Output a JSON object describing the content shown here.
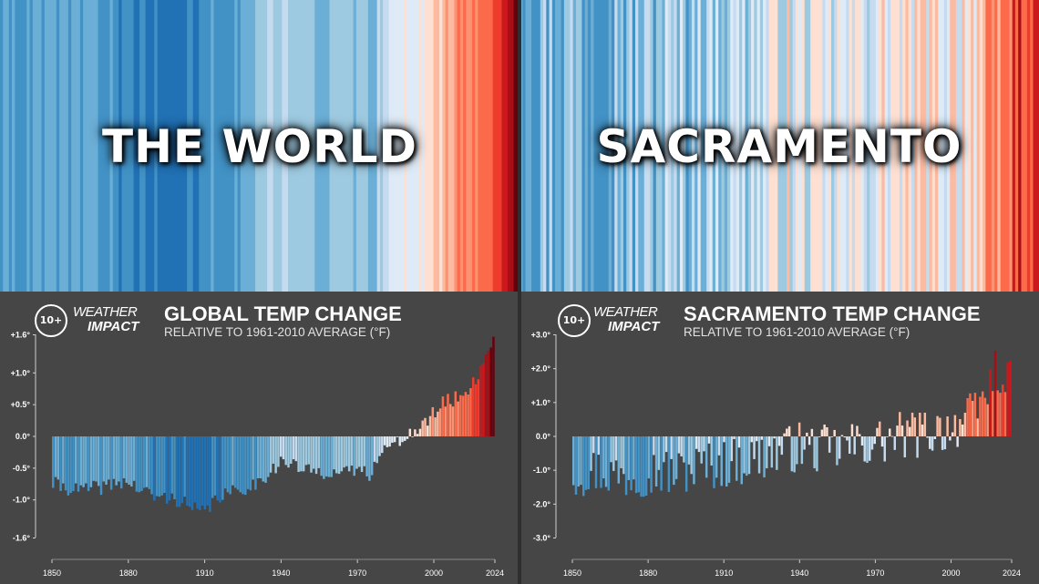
{
  "panels": [
    {
      "stripe_label": "THE WORLD",
      "logo_text": "10+",
      "brand_line1": "WEATHER",
      "brand_line2": "IMPACT",
      "title": "GLOBAL TEMP CHANGE",
      "subtitle": "RELATIVE TO 1961-2010 AVERAGE (°F)"
    },
    {
      "stripe_label": "SACRAMENTO",
      "logo_text": "10+",
      "brand_line1": "WEATHER",
      "brand_line2": "IMPACT",
      "title": "SACRAMENTO TEMP CHANGE",
      "subtitle": "RELATIVE TO 1961-2010 AVERAGE (°F)"
    }
  ],
  "colors": {
    "background": "#464646",
    "scale": [
      "#08306b",
      "#08519c",
      "#2171b5",
      "#4292c6",
      "#6baed6",
      "#9ecae1",
      "#c6dbef",
      "#deebf7",
      "#fee0d2",
      "#fcbba1",
      "#fc9272",
      "#fb6a4a",
      "#ef3b2c",
      "#cb181d",
      "#a50f15",
      "#67000d"
    ]
  },
  "chart_data": [
    {
      "type": "bar",
      "title": "GLOBAL TEMP CHANGE",
      "subtitle": "RELATIVE TO 1961-2010 AVERAGE (°F)",
      "x_start": 1850,
      "x_end": 2024,
      "x_ticks": [
        1850,
        1880,
        1910,
        1940,
        1970,
        2000,
        2024
      ],
      "y_ticks": [
        1.6,
        1.0,
        0.5,
        0.0,
        -0.5,
        -1.0,
        -1.6
      ],
      "y_tick_labels": [
        "+1.6°",
        "+1.0°",
        "+0.5°",
        "0.0°",
        "-0.5°",
        "-1.0°",
        "-1.6°"
      ],
      "ylim": [
        -1.6,
        1.6
      ],
      "anchors": [
        [
          1850,
          -0.75
        ],
        [
          1860,
          -0.85
        ],
        [
          1870,
          -0.8
        ],
        [
          1878,
          -0.7
        ],
        [
          1890,
          -0.95
        ],
        [
          1900,
          -1.0
        ],
        [
          1905,
          -1.15
        ],
        [
          1910,
          -1.2
        ],
        [
          1915,
          -0.95
        ],
        [
          1920,
          -0.9
        ],
        [
          1930,
          -0.75
        ],
        [
          1940,
          -0.4
        ],
        [
          1945,
          -0.45
        ],
        [
          1950,
          -0.55
        ],
        [
          1960,
          -0.55
        ],
        [
          1965,
          -0.6
        ],
        [
          1970,
          -0.5
        ],
        [
          1975,
          -0.6
        ],
        [
          1978,
          -0.3
        ],
        [
          1980,
          -0.2
        ],
        [
          1985,
          -0.15
        ],
        [
          1990,
          0.05
        ],
        [
          1995,
          0.1
        ],
        [
          2000,
          0.35
        ],
        [
          2005,
          0.55
        ],
        [
          2010,
          0.6
        ],
        [
          2015,
          0.8
        ],
        [
          2018,
          0.95
        ],
        [
          2020,
          1.2
        ],
        [
          2023,
          1.45
        ],
        [
          2024,
          1.6
        ]
      ]
    },
    {
      "type": "bar",
      "title": "SACRAMENTO TEMP CHANGE",
      "subtitle": "RELATIVE TO 1961-2010 AVERAGE (°F)",
      "x_start": 1850,
      "x_end": 2024,
      "x_ticks": [
        1850,
        1880,
        1910,
        1940,
        1970,
        2000,
        2024
      ],
      "y_ticks": [
        3.0,
        2.0,
        1.0,
        0.0,
        -1.0,
        -2.0,
        -3.0
      ],
      "y_tick_labels": [
        "+3.0°",
        "+2.0°",
        "+1.0°",
        "0.0°",
        "-1.0°",
        "-2.0°",
        "-3.0°"
      ],
      "ylim": [
        -3.0,
        3.0
      ],
      "anchors": [
        [
          1850,
          -1.1
        ],
        [
          1860,
          -1.0
        ],
        [
          1870,
          -1.2
        ],
        [
          1880,
          -1.0
        ],
        [
          1890,
          -1.1
        ],
        [
          1900,
          -0.9
        ],
        [
          1910,
          -0.8
        ],
        [
          1920,
          -0.7
        ],
        [
          1930,
          -0.5
        ],
        [
          1940,
          -0.3
        ],
        [
          1950,
          -0.4
        ],
        [
          1960,
          -0.3
        ],
        [
          1970,
          -0.2
        ],
        [
          1980,
          0.0
        ],
        [
          1990,
          0.1
        ],
        [
          2000,
          0.3
        ],
        [
          2010,
          0.6
        ],
        [
          2015,
          1.4
        ],
        [
          2018,
          1.9
        ],
        [
          2020,
          2.0
        ],
        [
          2022,
          1.4
        ],
        [
          2024,
          1.5
        ]
      ]
    }
  ]
}
